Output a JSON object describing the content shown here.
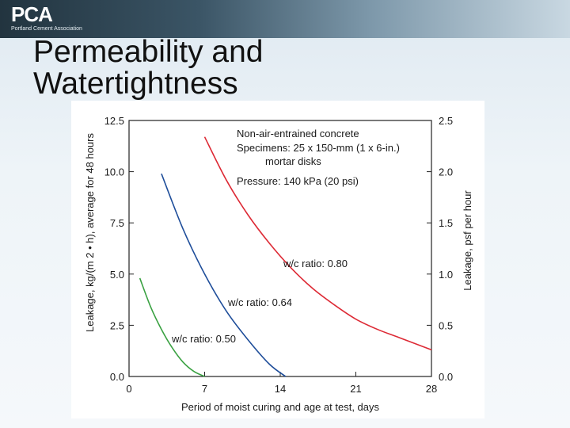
{
  "header": {
    "logo_text": "PCA",
    "logo_subtitle": "Portland Cement Association"
  },
  "slide": {
    "title": "Permeability and Watertightness"
  },
  "chart_data": {
    "type": "line",
    "title": "",
    "xlabel": "Period of moist curing and age at test, days",
    "ylabel": "Leakage, kg/(m 2 • h), average for 48 hours",
    "y2label": "Leakage, psf per hour",
    "xlim": [
      0,
      28
    ],
    "ylim": [
      0,
      12.5
    ],
    "y2lim": [
      0,
      2.5
    ],
    "x_ticks": [
      "0",
      "7",
      "14",
      "21",
      "28"
    ],
    "y_ticks": [
      "0.0",
      "2.5",
      "5.0",
      "7.5",
      "10.0",
      "12.5"
    ],
    "y2_ticks": [
      "0.0",
      "0.5",
      "1.0",
      "1.5",
      "2.0",
      "2.5"
    ],
    "grid": false,
    "annotations": [
      "Non-air-entrained concrete",
      "Specimens: 25 x 150-mm (1 x 6-in.)",
      "mortar disks",
      "Pressure: 140 kPa (20 psi)"
    ],
    "series": [
      {
        "name": "w/c ratio: 0.50",
        "color": "#3aa142",
        "x": [
          1,
          2,
          3,
          4,
          5,
          6,
          7
        ],
        "y": [
          4.8,
          3.4,
          2.3,
          1.4,
          0.7,
          0.25,
          0
        ]
      },
      {
        "name": "w/c ratio: 0.64",
        "color": "#1f4e9a",
        "x": [
          3,
          5,
          7,
          9,
          11,
          13,
          14.5
        ],
        "y": [
          9.9,
          7.2,
          5.0,
          3.2,
          1.8,
          0.6,
          0
        ]
      },
      {
        "name": "w/c ratio: 0.80",
        "color": "#dd2a35",
        "x": [
          7,
          9,
          11,
          13,
          15,
          17,
          19,
          21,
          23,
          25,
          28
        ],
        "y": [
          11.7,
          9.6,
          7.9,
          6.5,
          5.3,
          4.3,
          3.5,
          2.8,
          2.3,
          1.9,
          1.3
        ]
      }
    ]
  }
}
